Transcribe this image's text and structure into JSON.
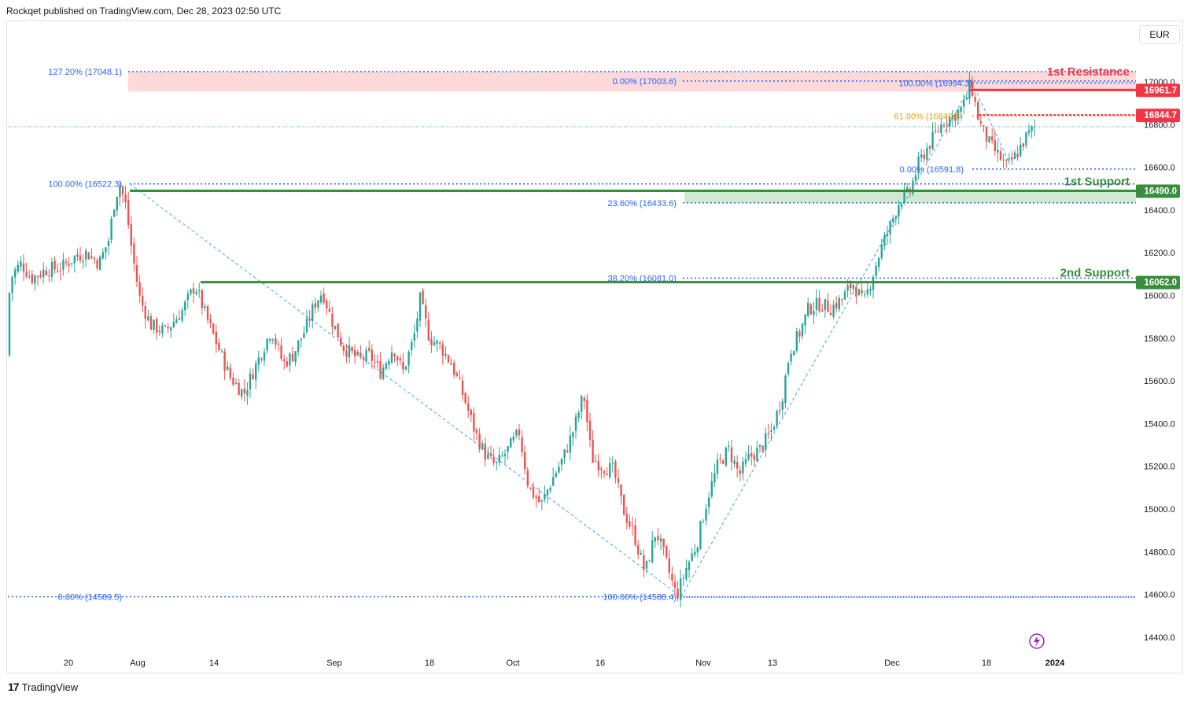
{
  "header": {
    "published": "Rockqet published on TradingView.com, Dec 28, 2023 02:50 UTC"
  },
  "currency": "EUR",
  "footer": {
    "brand": "TradingView"
  },
  "colors": {
    "up": "#26a69a",
    "down": "#ef5350",
    "fib": "#2962ff",
    "resistance": "#f23645",
    "support": "#388e3c",
    "resistance_zone": "#fcd3d3",
    "support_zone": "#c8e6c9",
    "fib_gold": "#e4a11b"
  },
  "chart_data": {
    "type": "candlestick",
    "ylim": [
      14300,
      17250
    ],
    "y_ticks": [
      "17000.0",
      "16800.0",
      "16600.0",
      "16400.0",
      "16200.0",
      "16000.0",
      "15800.0",
      "15600.0",
      "15400.0",
      "15200.0",
      "15000.0",
      "14800.0",
      "14600.0",
      "14400.0"
    ],
    "x_ticks": [
      "20",
      "Aug",
      "14",
      "Sep",
      "18",
      "Oct",
      "16",
      "Nov",
      "13",
      "Dec",
      "18",
      "2024"
    ],
    "price_path": [
      [
        0,
        15720
      ],
      [
        6,
        15880
      ],
      [
        16,
        16100
      ],
      [
        27,
        16150
      ],
      [
        40,
        16080
      ],
      [
        58,
        16120
      ],
      [
        78,
        16130
      ],
      [
        95,
        16180
      ],
      [
        110,
        16200
      ],
      [
        126,
        16150
      ],
      [
        138,
        16260
      ],
      [
        146,
        16450
      ],
      [
        152,
        16522
      ],
      [
        160,
        16420
      ],
      [
        168,
        16200
      ],
      [
        178,
        15980
      ],
      [
        192,
        15860
      ],
      [
        210,
        15830
      ],
      [
        232,
        15930
      ],
      [
        248,
        16050
      ],
      [
        262,
        15900
      ],
      [
        278,
        15750
      ],
      [
        292,
        15620
      ],
      [
        310,
        15540
      ],
      [
        326,
        15680
      ],
      [
        345,
        15840
      ],
      [
        360,
        15680
      ],
      [
        372,
        15720
      ],
      [
        388,
        15840
      ],
      [
        400,
        15960
      ],
      [
        410,
        16020
      ],
      [
        420,
        15900
      ],
      [
        436,
        15760
      ],
      [
        456,
        15700
      ],
      [
        470,
        15720
      ],
      [
        484,
        15640
      ],
      [
        500,
        15760
      ],
      [
        512,
        15640
      ],
      [
        526,
        15800
      ],
      [
        534,
        15980
      ],
      [
        546,
        15800
      ],
      [
        560,
        15760
      ],
      [
        574,
        15680
      ],
      [
        590,
        15520
      ],
      [
        604,
        15360
      ],
      [
        616,
        15260
      ],
      [
        630,
        15200
      ],
      [
        646,
        15280
      ],
      [
        660,
        15360
      ],
      [
        672,
        15100
      ],
      [
        688,
        15020
      ],
      [
        702,
        15140
      ],
      [
        716,
        15240
      ],
      [
        730,
        15380
      ],
      [
        742,
        15540
      ],
      [
        752,
        15240
      ],
      [
        766,
        15200
      ],
      [
        780,
        15180
      ],
      [
        792,
        15000
      ],
      [
        806,
        14880
      ],
      [
        820,
        14700
      ],
      [
        834,
        14900
      ],
      [
        846,
        14760
      ],
      [
        860,
        14589
      ],
      [
        872,
        14720
      ],
      [
        886,
        14840
      ],
      [
        900,
        15060
      ],
      [
        912,
        15200
      ],
      [
        926,
        15280
      ],
      [
        940,
        15160
      ],
      [
        952,
        15240
      ],
      [
        966,
        15280
      ],
      [
        980,
        15360
      ],
      [
        994,
        15520
      ],
      [
        1004,
        15740
      ],
      [
        1016,
        15820
      ],
      [
        1028,
        15940
      ],
      [
        1042,
        15960
      ],
      [
        1056,
        15940
      ],
      [
        1070,
        15980
      ],
      [
        1084,
        16060
      ],
      [
        1098,
        15960
      ],
      [
        1108,
        16080
      ],
      [
        1120,
        16220
      ],
      [
        1132,
        16330
      ],
      [
        1144,
        16450
      ],
      [
        1156,
        16480
      ],
      [
        1168,
        16620
      ],
      [
        1180,
        16700
      ],
      [
        1190,
        16760
      ],
      [
        1200,
        16820
      ],
      [
        1212,
        16840
      ],
      [
        1224,
        16880
      ],
      [
        1234,
        16994
      ],
      [
        1244,
        16820
      ],
      [
        1256,
        16720
      ],
      [
        1268,
        16660
      ],
      [
        1280,
        16600
      ],
      [
        1292,
        16660
      ],
      [
        1304,
        16740
      ],
      [
        1316,
        16790
      ]
    ],
    "horizontal_levels": [
      {
        "label": "1st Resistance",
        "value": 16961.7,
        "tag": "16961.7",
        "role": "resistance"
      },
      {
        "label": "",
        "value": 16844.7,
        "tag": "16844.7",
        "role": "resistance-dotted"
      },
      {
        "label": "1st Support",
        "value": 16490.0,
        "tag": "16490.0",
        "role": "support"
      },
      {
        "label": "2nd Support",
        "value": 16062.0,
        "tag": "16062.0",
        "role": "support"
      }
    ],
    "fib_left": [
      {
        "text": "127.20% (17048.1)",
        "value": 17048.1
      },
      {
        "text": "100.00% (16522.3)",
        "value": 16522.3
      },
      {
        "text": "0.00% (14589.5)",
        "value": 14589.5
      }
    ],
    "fib_mid": [
      {
        "text": "0.00% (17003.6)",
        "value": 17003.6
      },
      {
        "text": "23.60% (16433.6)",
        "value": 16433.6
      },
      {
        "text": "38.20% (16081.0)",
        "value": 16081.0
      },
      {
        "text": "100.00% (14588.4)",
        "value": 14588.4
      }
    ],
    "fib_right": [
      {
        "text": "100.00% (16994.3)",
        "value": 16994.3
      },
      {
        "text": "61.80% (16840.5)",
        "value": 16840.5
      },
      {
        "text": "0.00% (16591.8)",
        "value": 16591.8
      }
    ],
    "current_price": 16790
  }
}
